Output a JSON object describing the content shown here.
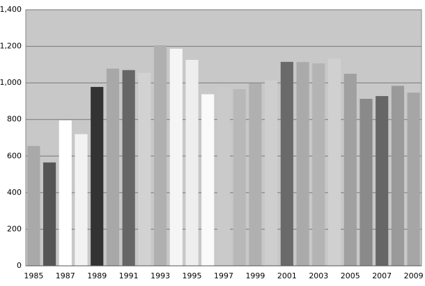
{
  "chart_data": {
    "type": "bar",
    "categories": [
      "1985",
      null,
      "1987",
      null,
      "1989",
      null,
      "1991",
      null,
      "1993",
      null,
      "1995",
      null,
      "1997",
      null,
      "1999",
      null,
      "2001",
      null,
      "2003",
      null,
      "2005",
      null,
      "2007",
      null,
      "2009"
    ],
    "values": [
      655,
      565,
      795,
      720,
      978,
      1078,
      1070,
      1055,
      1206,
      1187,
      1126,
      938,
      975,
      966,
      997,
      1015,
      1115,
      1114,
      1107,
      1134,
      1050,
      913,
      928,
      984,
      947
    ],
    "colors": [
      "#a9a9a9",
      "#555555",
      "#ffffff",
      "#f2f2f2",
      "#333333",
      "#a8a8a8",
      "#666666",
      "#d2d2d2",
      "#b0b0b0",
      "#f5f5f5",
      "#eeeeee",
      "#fafafa",
      "#cacaca",
      "#b8b8b8",
      "#b0b0b0",
      "#cecece",
      "#6a6a6a",
      "#aaaaaa",
      "#b4b4b4",
      "#d0d0d0",
      "#a0a0a0",
      "#8a8a8a",
      "#666666",
      "#9a9a9a",
      "#a6a6a6"
    ],
    "ylim": [
      0,
      1400
    ],
    "yticks": [
      0,
      200,
      400,
      600,
      800,
      {
        "value": 1000,
        "label": "1,000"
      },
      {
        "value": 1200,
        "label": "1,200"
      },
      {
        "value": 1400,
        "label": "1,400"
      }
    ],
    "grid": true,
    "background": "#c8c8c8"
  }
}
